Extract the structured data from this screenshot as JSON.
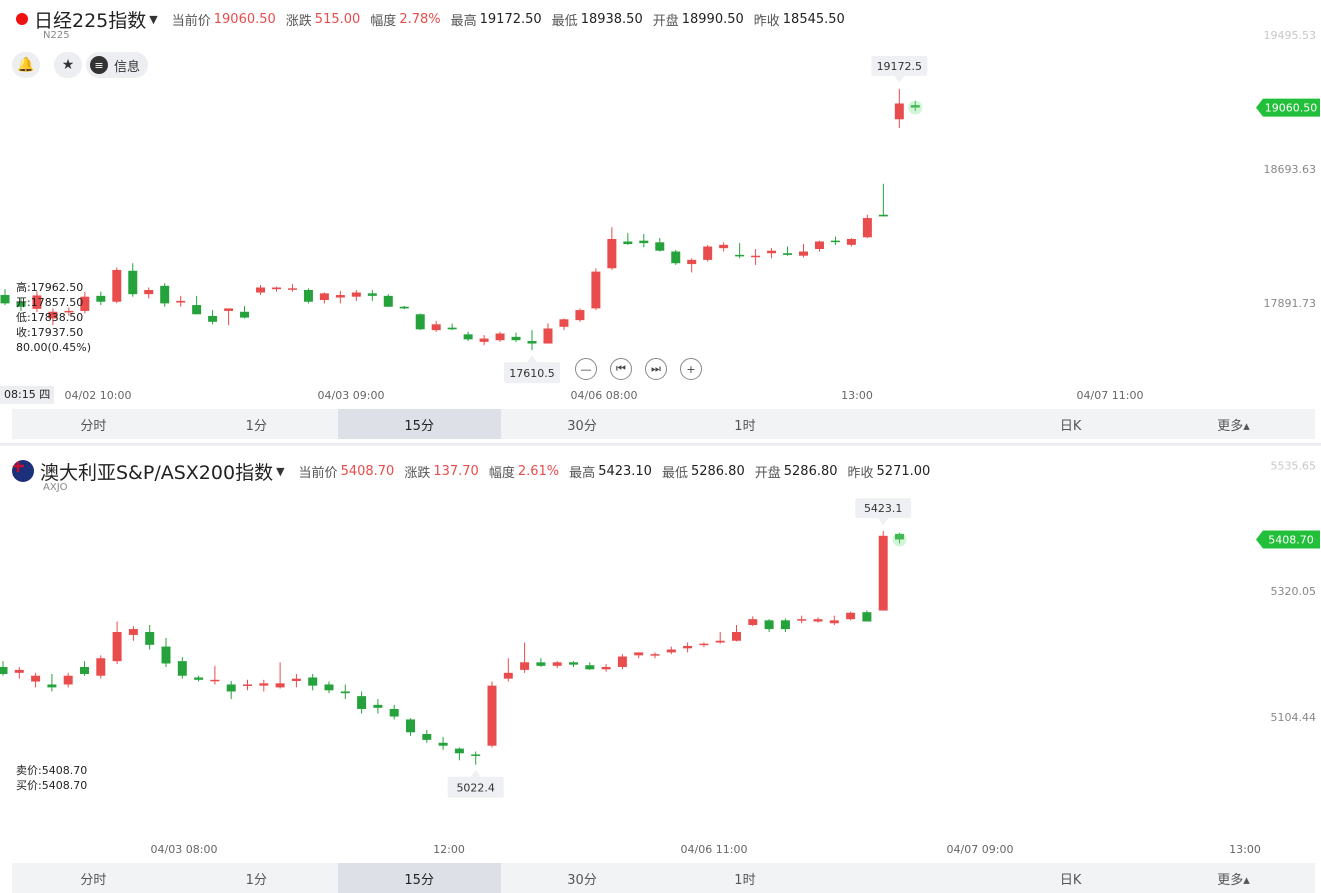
{
  "panel1": {
    "title": "日经225指数",
    "code": "N225",
    "stats": [
      {
        "label": "当前价",
        "value": "19060.50",
        "color": "red"
      },
      {
        "label": "涨跌",
        "value": "515.00",
        "color": "red"
      },
      {
        "label": "幅度",
        "value": "2.78%",
        "color": "red"
      },
      {
        "label": "最高",
        "value": "19172.50",
        "color": "dark"
      },
      {
        "label": "最低",
        "value": "18938.50",
        "color": "dark"
      },
      {
        "label": "开盘",
        "value": "18990.50",
        "color": "dark"
      },
      {
        "label": "昨收",
        "value": "18545.50",
        "color": "dark"
      }
    ],
    "buttons": {
      "info_label": "信息"
    },
    "ohlc_lines": [
      "高:17962.50",
      "开:17857.50",
      "低:17838.50",
      "收:17937.50",
      "80.00(0.45%)"
    ],
    "current_time_label": "08:15 四"
  },
  "panel2": {
    "title": "澳大利亚S&P/ASX200指数",
    "code": "AXJO",
    "stats": [
      {
        "label": "当前价",
        "value": "5408.70",
        "color": "red"
      },
      {
        "label": "涨跌",
        "value": "137.70",
        "color": "red"
      },
      {
        "label": "幅度",
        "value": "2.61%",
        "color": "red"
      },
      {
        "label": "最高",
        "value": "5423.10",
        "color": "dark"
      },
      {
        "label": "最低",
        "value": "5286.80",
        "color": "dark"
      },
      {
        "label": "开盘",
        "value": "5286.80",
        "color": "dark"
      },
      {
        "label": "昨收",
        "value": "5271.00",
        "color": "dark"
      }
    ],
    "bid_ask": [
      "卖价:5408.70",
      "买价:5408.70"
    ]
  },
  "tabs": [
    "分时",
    "1分",
    "15分",
    "30分",
    "1时",
    "",
    "日K",
    "更多▴"
  ],
  "active_tab": "15分",
  "colors": {
    "up": "#e94c4c",
    "down": "#25a23c",
    "price_tag": "#22c03a"
  },
  "chart_data": [
    {
      "type": "candlestick",
      "title": "日经225指数",
      "y_ticks": [
        "19495.53",
        "18693.63",
        "17891.73"
      ],
      "ylim": [
        17450,
        19560
      ],
      "x_ticks": [
        "04/02 10:00",
        "04/03 09:00",
        "04/06 08:00",
        "13:00",
        "04/07 11:00"
      ],
      "max_label": "19172.5",
      "min_label": "17610.5",
      "last_price": "19060.50",
      "candles": [
        {
          "o": 17940,
          "h": 17975,
          "l": 17880,
          "c": 17890
        },
        {
          "o": 17900,
          "h": 17920,
          "l": 17845,
          "c": 17870
        },
        {
          "o": 17857.5,
          "h": 17962.5,
          "l": 17838.5,
          "c": 17937.5
        },
        {
          "o": 17800,
          "h": 17860,
          "l": 17760,
          "c": 17840
        },
        {
          "o": 17840,
          "h": 17865,
          "l": 17815,
          "c": 17845
        },
        {
          "o": 17845,
          "h": 17960,
          "l": 17830,
          "c": 17930
        },
        {
          "o": 17935,
          "h": 17960,
          "l": 17880,
          "c": 17900
        },
        {
          "o": 17900,
          "h": 18105,
          "l": 17890,
          "c": 18090
        },
        {
          "o": 18085,
          "h": 18130,
          "l": 17930,
          "c": 17945
        },
        {
          "o": 17945,
          "h": 17985,
          "l": 17920,
          "c": 17970
        },
        {
          "o": 17995,
          "h": 18010,
          "l": 17870,
          "c": 17890
        },
        {
          "o": 17895,
          "h": 17935,
          "l": 17870,
          "c": 17905
        },
        {
          "o": 17880,
          "h": 17935,
          "l": 17825,
          "c": 17825
        },
        {
          "o": 17815,
          "h": 17850,
          "l": 17765,
          "c": 17780
        },
        {
          "o": 17845,
          "h": 17860,
          "l": 17760,
          "c": 17860
        },
        {
          "o": 17840,
          "h": 17875,
          "l": 17800,
          "c": 17805
        },
        {
          "o": 17955,
          "h": 18000,
          "l": 17940,
          "c": 17985
        },
        {
          "o": 17975,
          "h": 17990,
          "l": 17960,
          "c": 17985
        },
        {
          "o": 17975,
          "h": 18005,
          "l": 17960,
          "c": 17980
        },
        {
          "o": 17970,
          "h": 17980,
          "l": 17890,
          "c": 17900
        },
        {
          "o": 17910,
          "h": 17955,
          "l": 17890,
          "c": 17950
        },
        {
          "o": 17925,
          "h": 17965,
          "l": 17890,
          "c": 17940
        },
        {
          "o": 17930,
          "h": 17970,
          "l": 17905,
          "c": 17955
        },
        {
          "o": 17950,
          "h": 17970,
          "l": 17905,
          "c": 17935
        },
        {
          "o": 17935,
          "h": 17945,
          "l": 17870,
          "c": 17870
        },
        {
          "o": 17870,
          "h": 17875,
          "l": 17855,
          "c": 17860
        },
        {
          "o": 17825,
          "h": 17830,
          "l": 17730,
          "c": 17735
        },
        {
          "o": 17730,
          "h": 17785,
          "l": 17720,
          "c": 17765
        },
        {
          "o": 17745,
          "h": 17770,
          "l": 17730,
          "c": 17735
        },
        {
          "o": 17705,
          "h": 17720,
          "l": 17665,
          "c": 17675
        },
        {
          "o": 17660,
          "h": 17700,
          "l": 17640,
          "c": 17680
        },
        {
          "o": 17670,
          "h": 17720,
          "l": 17660,
          "c": 17710
        },
        {
          "o": 17690,
          "h": 17715,
          "l": 17660,
          "c": 17670
        },
        {
          "o": 17665,
          "h": 17730,
          "l": 17610.5,
          "c": 17650
        },
        {
          "o": 17650,
          "h": 17770,
          "l": 17650,
          "c": 17740
        },
        {
          "o": 17750,
          "h": 17800,
          "l": 17730,
          "c": 17795
        },
        {
          "o": 17790,
          "h": 17860,
          "l": 17780,
          "c": 17850
        },
        {
          "o": 17860,
          "h": 18100,
          "l": 17850,
          "c": 18080
        },
        {
          "o": 18100,
          "h": 18345,
          "l": 18090,
          "c": 18275
        },
        {
          "o": 18260,
          "h": 18310,
          "l": 18240,
          "c": 18245
        },
        {
          "o": 18265,
          "h": 18305,
          "l": 18225,
          "c": 18250
        },
        {
          "o": 18255,
          "h": 18280,
          "l": 18200,
          "c": 18205
        },
        {
          "o": 18200,
          "h": 18210,
          "l": 18120,
          "c": 18130
        },
        {
          "o": 18125,
          "h": 18160,
          "l": 18075,
          "c": 18150
        },
        {
          "o": 18150,
          "h": 18240,
          "l": 18140,
          "c": 18230
        },
        {
          "o": 18220,
          "h": 18255,
          "l": 18200,
          "c": 18240
        },
        {
          "o": 18180,
          "h": 18250,
          "l": 18160,
          "c": 18175
        },
        {
          "o": 18170,
          "h": 18215,
          "l": 18120,
          "c": 18175
        },
        {
          "o": 18190,
          "h": 18220,
          "l": 18160,
          "c": 18205
        },
        {
          "o": 18190,
          "h": 18230,
          "l": 18175,
          "c": 18180
        },
        {
          "o": 18175,
          "h": 18245,
          "l": 18165,
          "c": 18200
        },
        {
          "o": 18215,
          "h": 18265,
          "l": 18200,
          "c": 18260
        },
        {
          "o": 18265,
          "h": 18290,
          "l": 18240,
          "c": 18260
        },
        {
          "o": 18240,
          "h": 18280,
          "l": 18230,
          "c": 18275
        },
        {
          "o": 18285,
          "h": 18420,
          "l": 18280,
          "c": 18400
        },
        {
          "o": 18420,
          "h": 18605,
          "l": 18410,
          "c": 18410
        },
        {
          "o": 18990.5,
          "h": 19172.5,
          "l": 18938.5,
          "c": 19085
        },
        {
          "o": 19075,
          "h": 19100,
          "l": 19040,
          "c": 19060.5
        }
      ]
    },
    {
      "type": "candlestick",
      "title": "澳大利亚S&P/ASX200指数",
      "y_ticks": [
        "5535.65",
        "5320.05",
        "5104.44"
      ],
      "ylim": [
        4955,
        5545
      ],
      "x_ticks": [
        "04/03 08:00",
        "12:00",
        "04/06 11:00",
        "04/07 09:00",
        "13:00"
      ],
      "max_label": "5423.1",
      "min_label": "5022.4",
      "last_price": "5408.70",
      "candles": [
        {
          "o": 5190,
          "h": 5200,
          "l": 5175,
          "c": 5178
        },
        {
          "o": 5180,
          "h": 5190,
          "l": 5170,
          "c": 5185
        },
        {
          "o": 5165,
          "h": 5180,
          "l": 5155,
          "c": 5175
        },
        {
          "o": 5160,
          "h": 5178,
          "l": 5148,
          "c": 5155
        },
        {
          "o": 5160,
          "h": 5180,
          "l": 5155,
          "c": 5175
        },
        {
          "o": 5190,
          "h": 5200,
          "l": 5175,
          "c": 5178
        },
        {
          "o": 5175,
          "h": 5210,
          "l": 5170,
          "c": 5205
        },
        {
          "o": 5200,
          "h": 5268,
          "l": 5195,
          "c": 5250
        },
        {
          "o": 5245,
          "h": 5260,
          "l": 5235,
          "c": 5255
        },
        {
          "o": 5250,
          "h": 5262,
          "l": 5220,
          "c": 5228
        },
        {
          "o": 5225,
          "h": 5240,
          "l": 5190,
          "c": 5196
        },
        {
          "o": 5200,
          "h": 5207,
          "l": 5170,
          "c": 5175
        },
        {
          "o": 5172,
          "h": 5175,
          "l": 5165,
          "c": 5168
        },
        {
          "o": 5168,
          "h": 5192,
          "l": 5160,
          "c": 5168
        },
        {
          "o": 5160,
          "h": 5166,
          "l": 5135,
          "c": 5148
        },
        {
          "o": 5158,
          "h": 5168,
          "l": 5150,
          "c": 5160
        },
        {
          "o": 5158,
          "h": 5168,
          "l": 5148,
          "c": 5162
        },
        {
          "o": 5155,
          "h": 5198,
          "l": 5153,
          "c": 5162
        },
        {
          "o": 5166,
          "h": 5178,
          "l": 5155,
          "c": 5170
        },
        {
          "o": 5172,
          "h": 5178,
          "l": 5150,
          "c": 5158
        },
        {
          "o": 5160,
          "h": 5165,
          "l": 5145,
          "c": 5150
        },
        {
          "o": 5148,
          "h": 5160,
          "l": 5135,
          "c": 5145
        },
        {
          "o": 5140,
          "h": 5148,
          "l": 5110,
          "c": 5118
        },
        {
          "o": 5125,
          "h": 5135,
          "l": 5110,
          "c": 5120
        },
        {
          "o": 5118,
          "h": 5125,
          "l": 5100,
          "c": 5105
        },
        {
          "o": 5100,
          "h": 5102,
          "l": 5072,
          "c": 5078
        },
        {
          "o": 5075,
          "h": 5082,
          "l": 5060,
          "c": 5065
        },
        {
          "o": 5060,
          "h": 5070,
          "l": 5048,
          "c": 5055
        },
        {
          "o": 5050,
          "h": 5052,
          "l": 5030,
          "c": 5042
        },
        {
          "o": 5040,
          "h": 5045,
          "l": 5022.4,
          "c": 5038
        },
        {
          "o": 5055,
          "h": 5165,
          "l": 5052,
          "c": 5158
        },
        {
          "o": 5170,
          "h": 5205,
          "l": 5165,
          "c": 5180
        },
        {
          "o": 5185,
          "h": 5232,
          "l": 5180,
          "c": 5198
        },
        {
          "o": 5198,
          "h": 5205,
          "l": 5190,
          "c": 5192
        },
        {
          "o": 5192,
          "h": 5200,
          "l": 5188,
          "c": 5198
        },
        {
          "o": 5198,
          "h": 5200,
          "l": 5190,
          "c": 5194
        },
        {
          "o": 5193,
          "h": 5198,
          "l": 5185,
          "c": 5186
        },
        {
          "o": 5186,
          "h": 5195,
          "l": 5182,
          "c": 5190
        },
        {
          "o": 5190,
          "h": 5212,
          "l": 5186,
          "c": 5208
        },
        {
          "o": 5210,
          "h": 5215,
          "l": 5205,
          "c": 5215
        },
        {
          "o": 5210,
          "h": 5215,
          "l": 5205,
          "c": 5212
        },
        {
          "o": 5215,
          "h": 5225,
          "l": 5212,
          "c": 5220
        },
        {
          "o": 5222,
          "h": 5232,
          "l": 5215,
          "c": 5226
        },
        {
          "o": 5228,
          "h": 5232,
          "l": 5224,
          "c": 5230
        },
        {
          "o": 5232,
          "h": 5250,
          "l": 5230,
          "c": 5235
        },
        {
          "o": 5235,
          "h": 5262,
          "l": 5234,
          "c": 5250
        },
        {
          "o": 5262,
          "h": 5277,
          "l": 5260,
          "c": 5272
        },
        {
          "o": 5270,
          "h": 5272,
          "l": 5250,
          "c": 5255
        },
        {
          "o": 5270,
          "h": 5273,
          "l": 5250,
          "c": 5255
        },
        {
          "o": 5270,
          "h": 5278,
          "l": 5265,
          "c": 5272
        },
        {
          "o": 5268,
          "h": 5275,
          "l": 5266,
          "c": 5272
        },
        {
          "o": 5265,
          "h": 5278,
          "l": 5262,
          "c": 5270
        },
        {
          "o": 5272,
          "h": 5285,
          "l": 5270,
          "c": 5283
        },
        {
          "o": 5284,
          "h": 5287,
          "l": 5268,
          "c": 5268
        },
        {
          "o": 5286.8,
          "h": 5423.1,
          "l": 5286.8,
          "c": 5415
        },
        {
          "o": 5418,
          "h": 5420,
          "l": 5402,
          "c": 5408.7
        }
      ]
    }
  ]
}
